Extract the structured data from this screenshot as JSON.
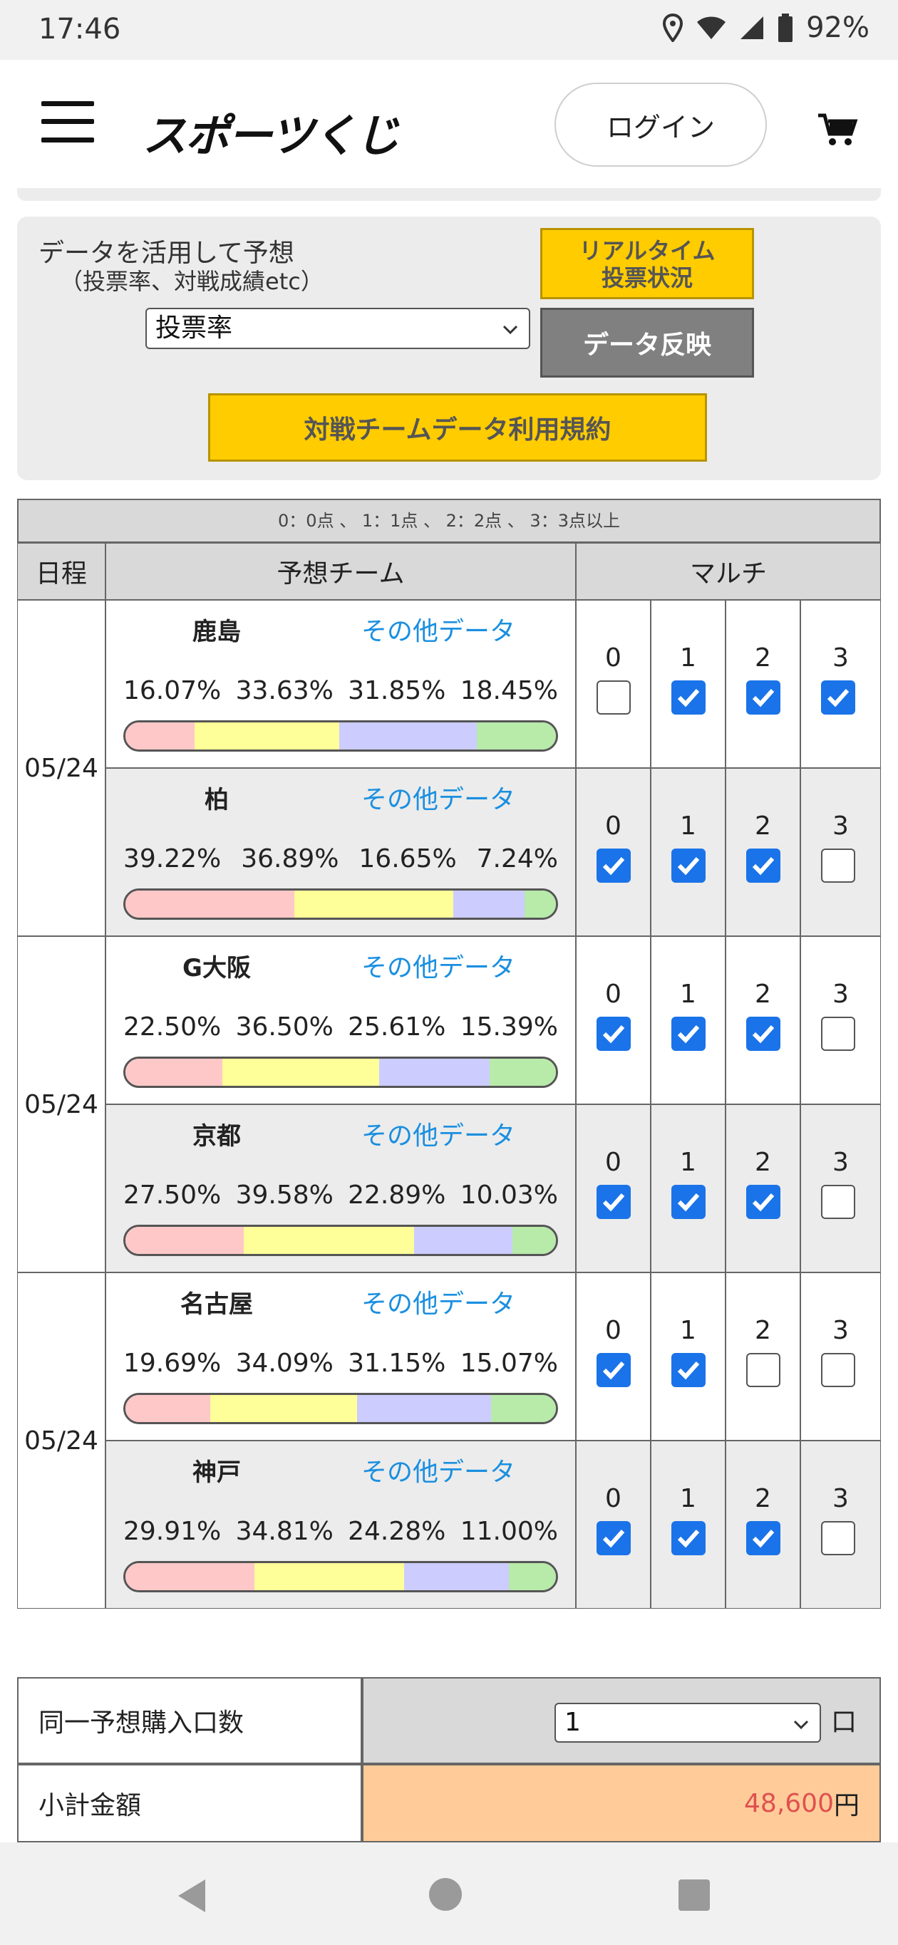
{
  "status_bar": {
    "time": "17:46",
    "battery": "92%"
  },
  "header": {
    "logo": "スポーツくじ",
    "login_label": "ログイン"
  },
  "data_panel": {
    "title": "データを活用して予想",
    "subtitle": "（投票率、対戦成績etc）",
    "select_value": "投票率",
    "realtime_line1": "リアルタイム",
    "realtime_line2": "投票状況",
    "reflect_label": "データ反映",
    "terms_label": "対戦チームデータ利用規約"
  },
  "table": {
    "legend": "0：0点 、 1：1点 、 2：2点 、 3：3点以上",
    "col_date": "日程",
    "col_team": "予想チーム",
    "col_multi": "マルチ",
    "other_data_label": "その他データ",
    "multi_labels": [
      "0",
      "1",
      "2",
      "3"
    ],
    "matches": [
      {
        "date": "05/24",
        "teams": [
          {
            "name": "鹿島",
            "pct": [
              "16.07%",
              "33.63%",
              "31.85%",
              "18.45%"
            ],
            "shares": [
              16.07,
              33.63,
              31.85,
              18.45
            ],
            "checks": [
              false,
              true,
              true,
              true
            ]
          },
          {
            "name": "柏",
            "pct": [
              "39.22%",
              "36.89%",
              "16.65%",
              "7.24%"
            ],
            "shares": [
              39.22,
              36.89,
              16.65,
              7.24
            ],
            "checks": [
              true,
              true,
              true,
              false
            ]
          }
        ]
      },
      {
        "date": "05/24",
        "teams": [
          {
            "name": "G大阪",
            "pct": [
              "22.50%",
              "36.50%",
              "25.61%",
              "15.39%"
            ],
            "shares": [
              22.5,
              36.5,
              25.61,
              15.39
            ],
            "checks": [
              true,
              true,
              true,
              false
            ]
          },
          {
            "name": "京都",
            "pct": [
              "27.50%",
              "39.58%",
              "22.89%",
              "10.03%"
            ],
            "shares": [
              27.5,
              39.58,
              22.89,
              10.03
            ],
            "checks": [
              true,
              true,
              true,
              false
            ]
          }
        ]
      },
      {
        "date": "05/24",
        "teams": [
          {
            "name": "名古屋",
            "pct": [
              "19.69%",
              "34.09%",
              "31.15%",
              "15.07%"
            ],
            "shares": [
              19.69,
              34.09,
              31.15,
              15.07
            ],
            "checks": [
              true,
              true,
              false,
              false
            ]
          },
          {
            "name": "神戸",
            "pct": [
              "29.91%",
              "34.81%",
              "24.28%",
              "11.00%"
            ],
            "shares": [
              29.91,
              34.81,
              24.28,
              11.0
            ],
            "checks": [
              true,
              true,
              true,
              false
            ]
          }
        ]
      }
    ]
  },
  "purchase": {
    "qty_label": "同一予想購入口数",
    "qty_value": "1",
    "qty_unit": "口",
    "subtotal_label": "小計金額",
    "subtotal_amount": "48,600",
    "subtotal_unit": "円"
  },
  "colors": {
    "accent_yellow": "#ffcc00",
    "link_blue": "#1a8fe0",
    "check_blue": "#1a73e8",
    "subtotal_bg": "#ffcc99"
  }
}
